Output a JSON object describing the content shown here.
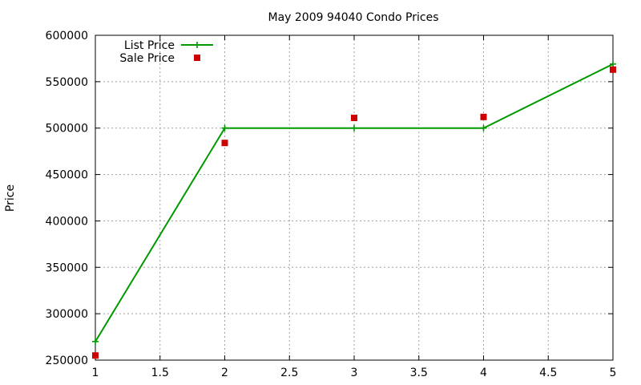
{
  "chart_data": {
    "type": "line",
    "title": "May 2009 94040 Condo Prices",
    "xlabel": "",
    "ylabel": "Price",
    "xlim": [
      1,
      5
    ],
    "ylim": [
      250000,
      600000
    ],
    "x_ticks": [
      "1",
      "1.5",
      "2",
      "2.5",
      "3",
      "3.5",
      "4",
      "4.5",
      "5"
    ],
    "y_ticks": [
      "250000",
      "300000",
      "350000",
      "400000",
      "450000",
      "500000",
      "550000",
      "600000"
    ],
    "grid": true,
    "legend_position": "top-left",
    "series": [
      {
        "name": "List Price",
        "kind": "line-points",
        "color": "#009900",
        "marker": "plus",
        "x": [
          1,
          2,
          3,
          4,
          5
        ],
        "y": [
          270000,
          500000,
          500000,
          500000,
          569000
        ]
      },
      {
        "name": "Sale Price",
        "kind": "points",
        "color": "#cc0000",
        "marker": "square",
        "x": [
          1,
          2,
          3,
          4,
          5
        ],
        "y": [
          255000,
          484000,
          511000,
          512000,
          563000
        ]
      }
    ]
  }
}
